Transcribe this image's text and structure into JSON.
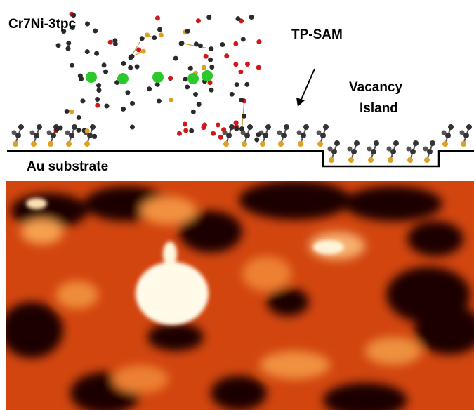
{
  "labels": {
    "molecule": "Cr7Ni-3tpc",
    "sam": "TP-SAM",
    "vacancy_line1": "Vacancy",
    "vacancy_line2": "Island",
    "substrate": "Au substrate"
  }
}
